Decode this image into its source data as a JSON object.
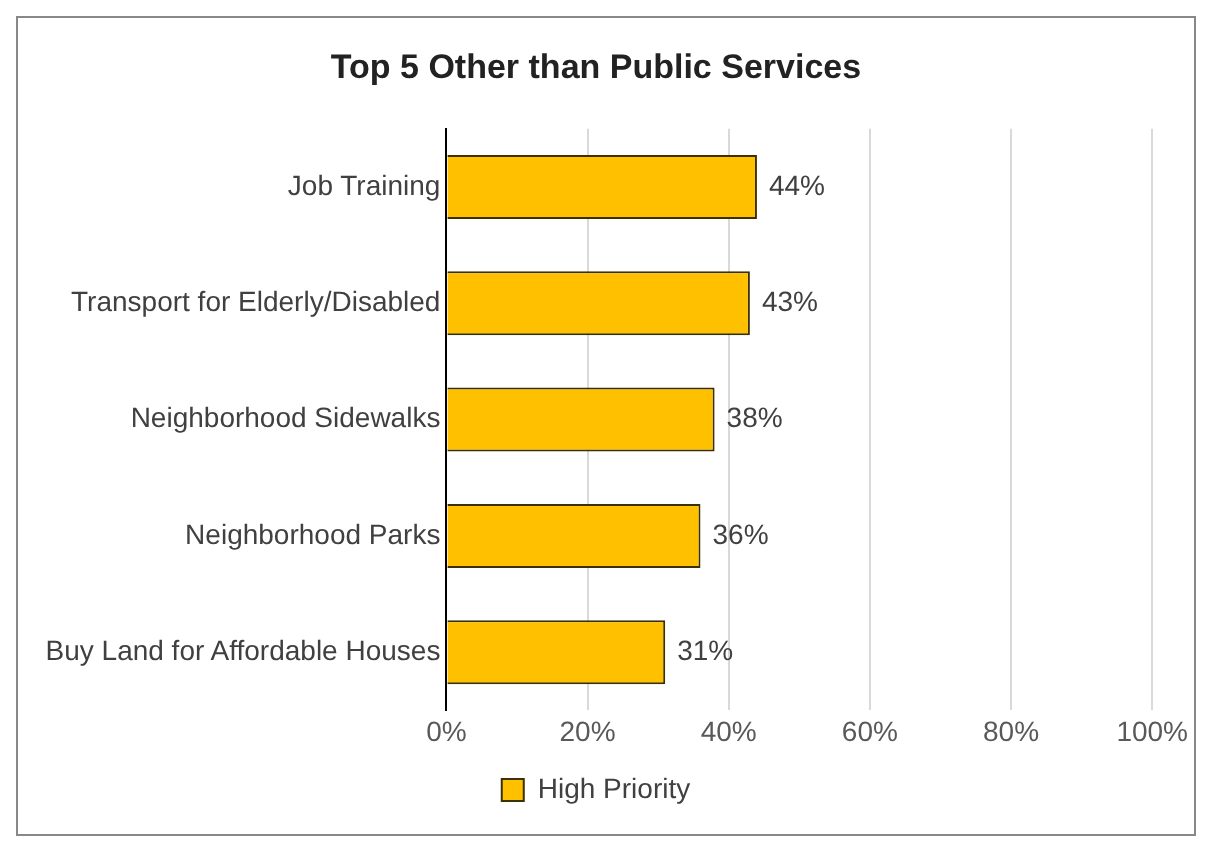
{
  "chart_data": {
    "type": "bar",
    "orientation": "horizontal",
    "title": "Top 5 Other than Public Services",
    "categories": [
      "Job Training",
      "Transport for Elderly/Disabled",
      "Neighborhood Sidewalks",
      "Neighborhood Parks",
      "Buy Land for Affordable Houses"
    ],
    "series": [
      {
        "name": "High Priority",
        "color": "#ffc000",
        "values": [
          44,
          43,
          38,
          36,
          31
        ],
        "value_labels": [
          "44%",
          "43%",
          "38%",
          "36%",
          "31%"
        ]
      }
    ],
    "xlim": [
      0,
      100
    ],
    "xticks": [
      {
        "value": 0,
        "label": "0%"
      },
      {
        "value": 20,
        "label": "20%"
      },
      {
        "value": 40,
        "label": "40%"
      },
      {
        "value": 60,
        "label": "60%"
      },
      {
        "value": 80,
        "label": "80%"
      },
      {
        "value": 100,
        "label": "100%"
      }
    ],
    "grid": "x",
    "legend": "bottom"
  }
}
